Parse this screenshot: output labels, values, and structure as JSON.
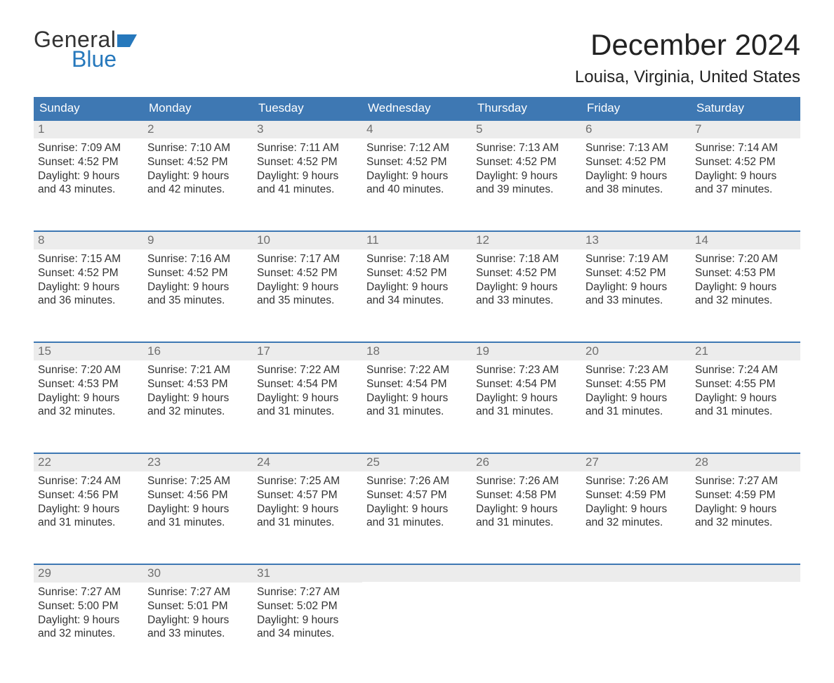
{
  "logo": {
    "line1": "General",
    "line2": "Blue",
    "accent_color": "#2678bc"
  },
  "title": "December 2024",
  "location": "Louisa, Virginia, United States",
  "colors": {
    "header_blue": "#3e78b3",
    "accent_blue": "#2678bc",
    "daynum_bg": "#ececec",
    "daynum_color": "#6f6f6f",
    "text": "#333333",
    "background": "#ffffff"
  },
  "weekdays": [
    "Sunday",
    "Monday",
    "Tuesday",
    "Wednesday",
    "Thursday",
    "Friday",
    "Saturday"
  ],
  "weeks": [
    [
      {
        "n": 1,
        "sunrise": "7:09 AM",
        "sunset": "4:52 PM",
        "d1": "Daylight: 9 hours",
        "d2": "and 43 minutes."
      },
      {
        "n": 2,
        "sunrise": "7:10 AM",
        "sunset": "4:52 PM",
        "d1": "Daylight: 9 hours",
        "d2": "and 42 minutes."
      },
      {
        "n": 3,
        "sunrise": "7:11 AM",
        "sunset": "4:52 PM",
        "d1": "Daylight: 9 hours",
        "d2": "and 41 minutes."
      },
      {
        "n": 4,
        "sunrise": "7:12 AM",
        "sunset": "4:52 PM",
        "d1": "Daylight: 9 hours",
        "d2": "and 40 minutes."
      },
      {
        "n": 5,
        "sunrise": "7:13 AM",
        "sunset": "4:52 PM",
        "d1": "Daylight: 9 hours",
        "d2": "and 39 minutes."
      },
      {
        "n": 6,
        "sunrise": "7:13 AM",
        "sunset": "4:52 PM",
        "d1": "Daylight: 9 hours",
        "d2": "and 38 minutes."
      },
      {
        "n": 7,
        "sunrise": "7:14 AM",
        "sunset": "4:52 PM",
        "d1": "Daylight: 9 hours",
        "d2": "and 37 minutes."
      }
    ],
    [
      {
        "n": 8,
        "sunrise": "7:15 AM",
        "sunset": "4:52 PM",
        "d1": "Daylight: 9 hours",
        "d2": "and 36 minutes."
      },
      {
        "n": 9,
        "sunrise": "7:16 AM",
        "sunset": "4:52 PM",
        "d1": "Daylight: 9 hours",
        "d2": "and 35 minutes."
      },
      {
        "n": 10,
        "sunrise": "7:17 AM",
        "sunset": "4:52 PM",
        "d1": "Daylight: 9 hours",
        "d2": "and 35 minutes."
      },
      {
        "n": 11,
        "sunrise": "7:18 AM",
        "sunset": "4:52 PM",
        "d1": "Daylight: 9 hours",
        "d2": "and 34 minutes."
      },
      {
        "n": 12,
        "sunrise": "7:18 AM",
        "sunset": "4:52 PM",
        "d1": "Daylight: 9 hours",
        "d2": "and 33 minutes."
      },
      {
        "n": 13,
        "sunrise": "7:19 AM",
        "sunset": "4:52 PM",
        "d1": "Daylight: 9 hours",
        "d2": "and 33 minutes."
      },
      {
        "n": 14,
        "sunrise": "7:20 AM",
        "sunset": "4:53 PM",
        "d1": "Daylight: 9 hours",
        "d2": "and 32 minutes."
      }
    ],
    [
      {
        "n": 15,
        "sunrise": "7:20 AM",
        "sunset": "4:53 PM",
        "d1": "Daylight: 9 hours",
        "d2": "and 32 minutes."
      },
      {
        "n": 16,
        "sunrise": "7:21 AM",
        "sunset": "4:53 PM",
        "d1": "Daylight: 9 hours",
        "d2": "and 32 minutes."
      },
      {
        "n": 17,
        "sunrise": "7:22 AM",
        "sunset": "4:54 PM",
        "d1": "Daylight: 9 hours",
        "d2": "and 31 minutes."
      },
      {
        "n": 18,
        "sunrise": "7:22 AM",
        "sunset": "4:54 PM",
        "d1": "Daylight: 9 hours",
        "d2": "and 31 minutes."
      },
      {
        "n": 19,
        "sunrise": "7:23 AM",
        "sunset": "4:54 PM",
        "d1": "Daylight: 9 hours",
        "d2": "and 31 minutes."
      },
      {
        "n": 20,
        "sunrise": "7:23 AM",
        "sunset": "4:55 PM",
        "d1": "Daylight: 9 hours",
        "d2": "and 31 minutes."
      },
      {
        "n": 21,
        "sunrise": "7:24 AM",
        "sunset": "4:55 PM",
        "d1": "Daylight: 9 hours",
        "d2": "and 31 minutes."
      }
    ],
    [
      {
        "n": 22,
        "sunrise": "7:24 AM",
        "sunset": "4:56 PM",
        "d1": "Daylight: 9 hours",
        "d2": "and 31 minutes."
      },
      {
        "n": 23,
        "sunrise": "7:25 AM",
        "sunset": "4:56 PM",
        "d1": "Daylight: 9 hours",
        "d2": "and 31 minutes."
      },
      {
        "n": 24,
        "sunrise": "7:25 AM",
        "sunset": "4:57 PM",
        "d1": "Daylight: 9 hours",
        "d2": "and 31 minutes."
      },
      {
        "n": 25,
        "sunrise": "7:26 AM",
        "sunset": "4:57 PM",
        "d1": "Daylight: 9 hours",
        "d2": "and 31 minutes."
      },
      {
        "n": 26,
        "sunrise": "7:26 AM",
        "sunset": "4:58 PM",
        "d1": "Daylight: 9 hours",
        "d2": "and 31 minutes."
      },
      {
        "n": 27,
        "sunrise": "7:26 AM",
        "sunset": "4:59 PM",
        "d1": "Daylight: 9 hours",
        "d2": "and 32 minutes."
      },
      {
        "n": 28,
        "sunrise": "7:27 AM",
        "sunset": "4:59 PM",
        "d1": "Daylight: 9 hours",
        "d2": "and 32 minutes."
      }
    ],
    [
      {
        "n": 29,
        "sunrise": "7:27 AM",
        "sunset": "5:00 PM",
        "d1": "Daylight: 9 hours",
        "d2": "and 32 minutes."
      },
      {
        "n": 30,
        "sunrise": "7:27 AM",
        "sunset": "5:01 PM",
        "d1": "Daylight: 9 hours",
        "d2": "and 33 minutes."
      },
      {
        "n": 31,
        "sunrise": "7:27 AM",
        "sunset": "5:02 PM",
        "d1": "Daylight: 9 hours",
        "d2": "and 34 minutes."
      },
      {
        "empty": true
      },
      {
        "empty": true
      },
      {
        "empty": true
      },
      {
        "empty": true
      }
    ]
  ],
  "labels": {
    "sunrise_prefix": "Sunrise: ",
    "sunset_prefix": "Sunset: "
  }
}
